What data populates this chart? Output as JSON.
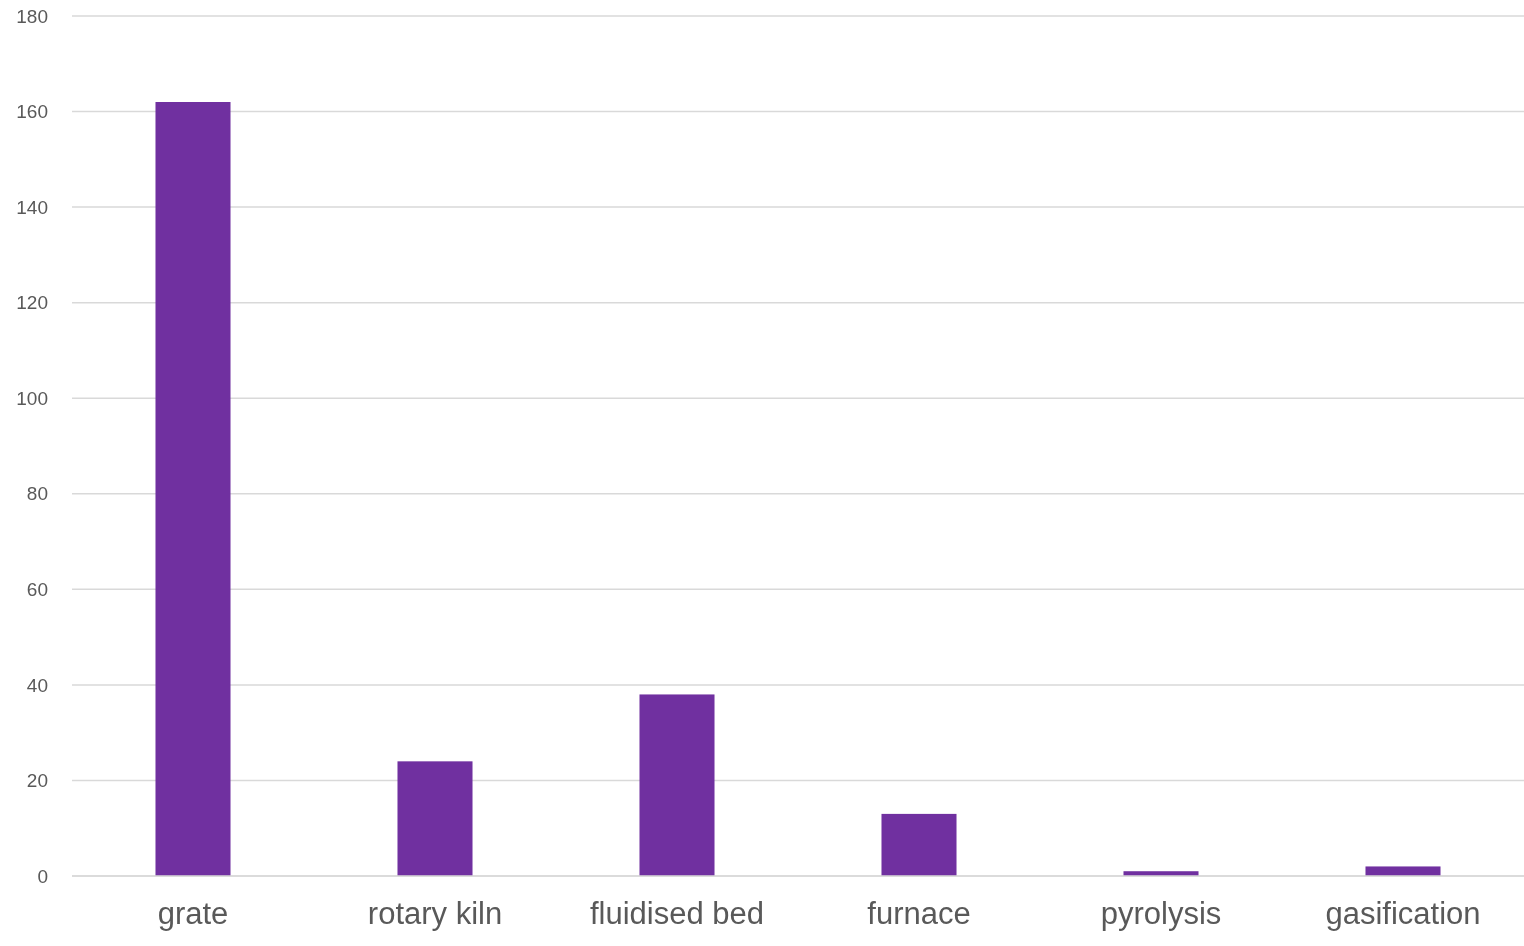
{
  "chart_data": {
    "type": "bar",
    "categories": [
      "grate",
      "rotary kiln",
      "fluidised bed",
      "furnace",
      "pyrolysis",
      "gasification"
    ],
    "values": [
      162,
      24,
      38,
      13,
      1,
      2
    ],
    "color": "#7030a0",
    "ylim": [
      0,
      180
    ],
    "yticks": [
      0,
      20,
      40,
      60,
      80,
      100,
      120,
      140,
      160,
      180
    ],
    "grid": "y"
  }
}
